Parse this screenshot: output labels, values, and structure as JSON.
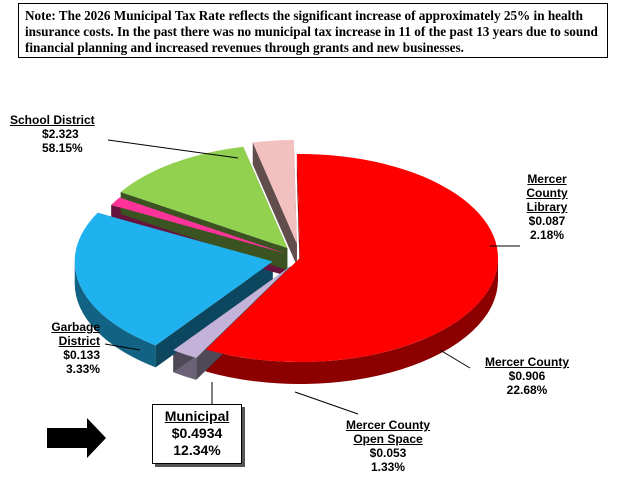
{
  "note": "Note: The 2026 Municipal Tax Rate reflects the significant increase of approximately 25% in health insurance costs. In the past there was no municipal tax increase in 11 of the past 13 years due to sound financial planning and increased revenues through grants and new businesses.",
  "chart_data": {
    "type": "pie",
    "title": "",
    "slices": [
      {
        "name": "School District",
        "value": 2.323,
        "percent": "58.15%",
        "value_label": "$2.323",
        "color": "#ff0000"
      },
      {
        "name": "Mercer County Library",
        "value": 0.087,
        "percent": "2.18%",
        "value_label": "$0.087",
        "color": "#c4b3d9"
      },
      {
        "name": "Mercer County",
        "value": 0.906,
        "percent": "22.68%",
        "value_label": "$0.906",
        "color": "#1fb2ee"
      },
      {
        "name": "Mercer County Open Space",
        "value": 0.053,
        "percent": "1.33%",
        "value_label": "$0.053",
        "color": "#ff3399"
      },
      {
        "name": "Municipal",
        "value": 0.4934,
        "percent": "12.34%",
        "value_label": "$0.4934",
        "color": "#92d050"
      },
      {
        "name": "Garbage District",
        "value": 0.133,
        "percent": "3.33%",
        "value_label": "$0.133",
        "color": "#f2c0be"
      }
    ]
  },
  "labels": {
    "school": {
      "l1": "School District",
      "v": "$2.323",
      "p": "58.15%"
    },
    "library": {
      "l1": "Mercer",
      "l2": "County",
      "l3": "Library",
      "v": "$0.087",
      "p": "2.18%"
    },
    "county": {
      "l1": "Mercer County",
      "v": "$0.906",
      "p": "22.68%"
    },
    "openspace": {
      "l1": "Mercer County",
      "l2": "Open Space",
      "v": "$0.053",
      "p": "1.33%"
    },
    "municipal": {
      "l1": "Municipal",
      "v": "$0.4934",
      "p": "12.34%"
    },
    "garbage": {
      "l1": "Garbage",
      "l2": "District",
      "v": "$0.133",
      "p": "3.33%"
    }
  },
  "colors": {
    "arrow": "#000000"
  }
}
